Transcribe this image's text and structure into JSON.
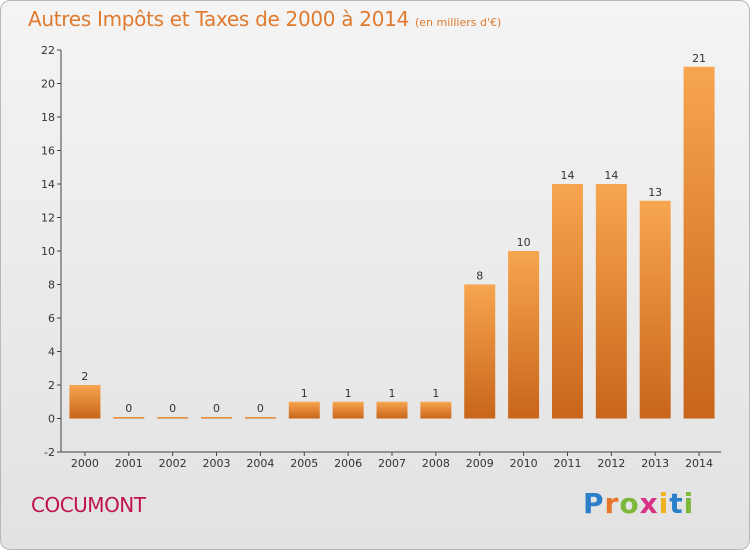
{
  "chart_data": {
    "type": "bar",
    "title": "Autres Impôts et Taxes de 2000 à 2014",
    "subtitle": "(en milliers d'€)",
    "categories": [
      "2000",
      "2001",
      "2002",
      "2003",
      "2004",
      "2005",
      "2006",
      "2007",
      "2008",
      "2009",
      "2010",
      "2011",
      "2012",
      "2013",
      "2014"
    ],
    "values": [
      2,
      0,
      0,
      0,
      0,
      1,
      1,
      1,
      1,
      8,
      10,
      14,
      14,
      13,
      21
    ],
    "ylim": [
      -2,
      22
    ],
    "yticks": [
      -2,
      0,
      2,
      4,
      6,
      8,
      10,
      12,
      14,
      16,
      18,
      20,
      22
    ],
    "grid": false,
    "colors": {
      "bar_light": "#f7a54f",
      "bar_dark": "#c8651a",
      "title": "#e07a2e"
    }
  },
  "commune": "COCUMONT",
  "logo": {
    "letters": [
      "P",
      "r",
      "o",
      "x",
      "i",
      "t",
      "i"
    ],
    "colors": [
      "#2a7fc9",
      "#e8762a",
      "#7cb83a",
      "#d63384",
      "#f0b21c",
      "#2a7fc9",
      "#7cb83a"
    ]
  }
}
